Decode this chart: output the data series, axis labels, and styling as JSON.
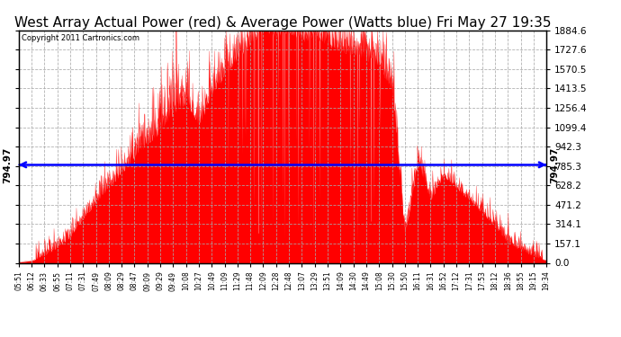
{
  "title": "West Array Actual Power (red) & Average Power (Watts blue) Fri May 27 19:35",
  "copyright": "Copyright 2011 Cartronics.com",
  "avg_power": 794.97,
  "y_max": 1884.6,
  "y_ticks": [
    0.0,
    157.1,
    314.1,
    471.2,
    628.2,
    785.3,
    942.3,
    1099.4,
    1256.4,
    1413.5,
    1570.5,
    1727.6,
    1884.6
  ],
  "x_labels": [
    "05:51",
    "06:12",
    "06:33",
    "06:55",
    "07:11",
    "07:31",
    "07:49",
    "08:09",
    "08:29",
    "08:47",
    "09:09",
    "09:29",
    "09:49",
    "10:08",
    "10:27",
    "10:49",
    "11:09",
    "11:29",
    "11:48",
    "12:09",
    "12:28",
    "12:48",
    "13:07",
    "13:29",
    "13:51",
    "14:09",
    "14:30",
    "14:49",
    "15:08",
    "15:30",
    "15:50",
    "16:11",
    "16:31",
    "16:52",
    "17:12",
    "17:31",
    "17:53",
    "18:12",
    "18:36",
    "18:55",
    "19:15",
    "19:34"
  ],
  "background_color": "#ffffff",
  "fill_color": "#ff0000",
  "line_color": "#0000ff",
  "grid_color": "#aaaaaa",
  "title_fontsize": 11,
  "label_fontsize": 7.5,
  "power_values": [
    5,
    18,
    55,
    120,
    200,
    350,
    480,
    600,
    720,
    850,
    950,
    1050,
    1200,
    1280,
    1100,
    1350,
    1500,
    1650,
    1750,
    1870,
    1820,
    1860,
    1780,
    1820,
    1750,
    1700,
    1680,
    1640,
    1580,
    1380,
    200,
    800,
    500,
    700,
    600,
    500,
    400,
    280,
    160,
    100,
    50,
    20
  ]
}
